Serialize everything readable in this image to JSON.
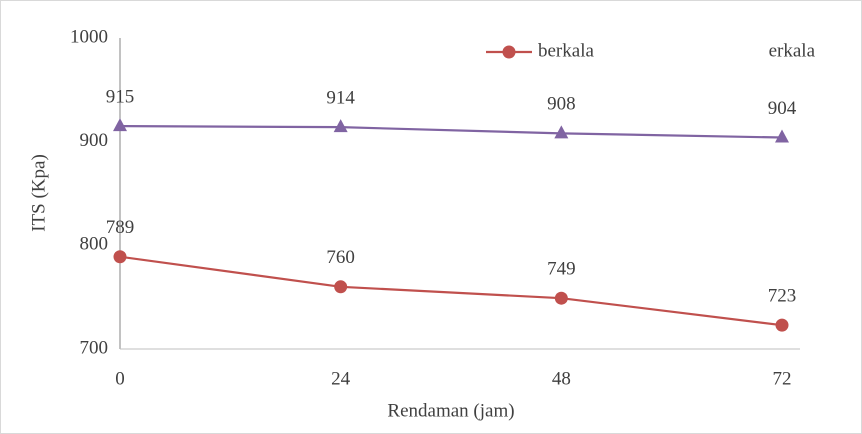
{
  "chart_data": {
    "type": "line",
    "x_label": "Rendaman (jam)",
    "y_label": "ITS (Kpa)",
    "categories": [
      "0",
      "24",
      "48",
      "72"
    ],
    "series": [
      {
        "name": "berkala",
        "color": "#c0504d",
        "marker": "circle",
        "values": [
          789,
          760,
          749,
          723
        ]
      },
      {
        "name": "erkala",
        "color": "#8064a2",
        "marker": "triangle",
        "values": [
          915,
          914,
          908,
          904
        ]
      }
    ],
    "ylim": [
      700,
      1000
    ],
    "yticks": [
      700,
      800,
      900,
      1000
    ],
    "grid": false,
    "legend": "top-right"
  }
}
